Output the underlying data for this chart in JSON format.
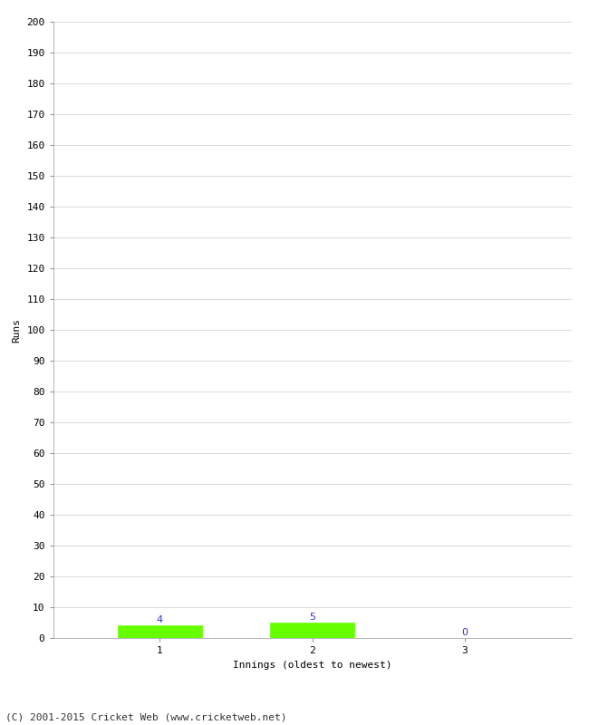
{
  "xlabel": "Innings (oldest to newest)",
  "ylabel": "Runs",
  "categories": [
    "1",
    "2",
    "3"
  ],
  "values": [
    4,
    5,
    0
  ],
  "bar_color": "#66ff00",
  "bar_edge_color": "#66ff00",
  "value_label_color": "#3333cc",
  "ylim": [
    0,
    200
  ],
  "ytick_step": 10,
  "background_color": "#ffffff",
  "grid_color": "#cccccc",
  "footer_text": "(C) 2001-2015 Cricket Web (www.cricketweb.net)",
  "value_fontsize": 8,
  "axis_label_fontsize": 8,
  "tick_fontsize": 8,
  "footer_fontsize": 8,
  "spine_color": "#999999"
}
